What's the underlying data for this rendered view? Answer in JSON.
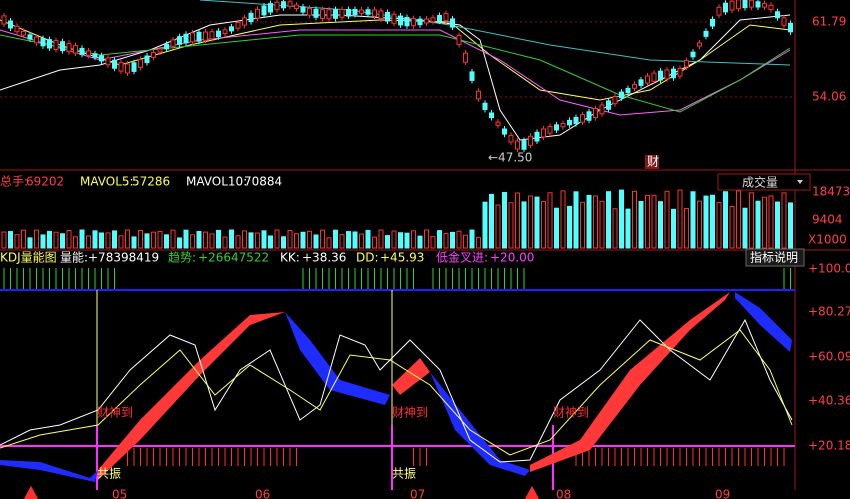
{
  "price_panel": {
    "axis_labels": [
      "61.79",
      "54.06"
    ],
    "low_marker": "←47.50",
    "badge": "财"
  },
  "volume_panel": {
    "total": {
      "label": "总手:",
      "value": "69202"
    },
    "mavol5": {
      "label": "MAVOL5:",
      "value": "57286"
    },
    "mavol10": {
      "label": "MAVOL10:",
      "value": "70884"
    },
    "selector": "成交量",
    "axis_labels": [
      "18473",
      "9404",
      "X1000"
    ]
  },
  "kdj_panel": {
    "title": "KDJ量能图",
    "energy": {
      "label": "量能:",
      "value": "+78398419"
    },
    "trend": {
      "label": "趋势:",
      "value": "+26647522"
    },
    "kk": {
      "label": "KK:",
      "value": "+38.36"
    },
    "dd": {
      "label": "DD:",
      "value": "+45.93"
    },
    "golden_cross": {
      "label": "低金叉进:",
      "value": "+20.00"
    },
    "help_button": "指标说明",
    "axis_labels": [
      "+100.0",
      "+80.27",
      "+60.09",
      "+40.36",
      "+20.18"
    ],
    "signals": [
      "财神到",
      "财神到",
      "财神到"
    ],
    "resonance": [
      "共振",
      "共振"
    ]
  },
  "date_axis": [
    "05",
    "06",
    "07",
    "08",
    "09"
  ]
}
